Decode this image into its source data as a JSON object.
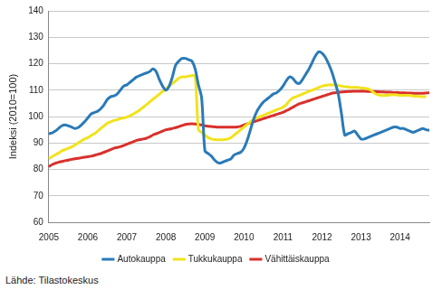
{
  "chart_data": {
    "type": "line",
    "y_label": "Indeksi (2010=100)",
    "annotations": [
      "Lähde: Tilastokeskus"
    ],
    "categories": [
      "2005",
      null,
      null,
      null,
      null,
      null,
      null,
      null,
      null,
      null,
      null,
      null,
      "2006",
      null,
      null,
      null,
      null,
      null,
      null,
      null,
      null,
      null,
      null,
      null,
      "2007",
      null,
      null,
      null,
      null,
      null,
      null,
      null,
      null,
      null,
      null,
      null,
      "2008",
      null,
      null,
      null,
      null,
      null,
      null,
      null,
      null,
      null,
      null,
      null,
      "2009",
      null,
      null,
      null,
      null,
      null,
      null,
      null,
      null,
      null,
      null,
      null,
      "2010",
      null,
      null,
      null,
      null,
      null,
      null,
      null,
      null,
      null,
      null,
      null,
      "2011",
      null,
      null,
      null,
      null,
      null,
      null,
      null,
      null,
      null,
      null,
      null,
      "2012",
      null,
      null,
      null,
      null,
      null,
      null,
      null,
      null,
      null,
      null,
      null,
      "2013",
      null,
      null,
      null,
      null,
      null,
      null,
      null,
      null,
      null,
      null,
      null,
      "2014",
      null,
      null,
      null,
      null,
      null,
      null,
      null,
      null,
      null
    ],
    "series": [
      {
        "name": "Autokauppa",
        "color": "#2a7ab8",
        "values": [
          93.5,
          93.8,
          94.5,
          95.5,
          96.5,
          96.8,
          96.5,
          96,
          95.5,
          95.8,
          96.8,
          98,
          99.5,
          101,
          101.5,
          102,
          103,
          104.5,
          106.5,
          107.5,
          107.8,
          108.5,
          110,
          111.5,
          112,
          113,
          114,
          115,
          115.5,
          116,
          116.5,
          117,
          118,
          117,
          114,
          111.5,
          110,
          111.5,
          115,
          119.5,
          121,
          122,
          122,
          121.5,
          121,
          118,
          112,
          107,
          87,
          86,
          85,
          83.5,
          82.5,
          82.5,
          83,
          83.5,
          84,
          85.5,
          86,
          86.5,
          88,
          91,
          95,
          99,
          102,
          104,
          105.5,
          106.5,
          107.5,
          108.5,
          109,
          110,
          111.5,
          113.5,
          115,
          114.5,
          113,
          112.5,
          114,
          116,
          118,
          120.5,
          123,
          124.5,
          124,
          122.5,
          120,
          117,
          113,
          108.5,
          101,
          93,
          93.5,
          94,
          94.5,
          93,
          91.5,
          91.5,
          92,
          92.5,
          93,
          93.5,
          94,
          94.5,
          95,
          95.5,
          96,
          96,
          95.5,
          95.5,
          95,
          94.5,
          94,
          94.5,
          95,
          95.5,
          95,
          94.8
        ]
      },
      {
        "name": "Tukkukauppa",
        "color": "#f2e21b",
        "values": [
          84,
          84.8,
          85.5,
          86.2,
          87,
          87.5,
          88,
          88.5,
          89.2,
          90,
          90.8,
          91.5,
          92,
          92.8,
          93.5,
          94.5,
          95.5,
          96.5,
          97.5,
          98,
          98.5,
          98.8,
          99.2,
          99.5,
          99.8,
          100.3,
          101,
          101.7,
          102.5,
          103.5,
          104.5,
          105.5,
          106.5,
          107.5,
          108.5,
          109.5,
          110.5,
          111.5,
          112.5,
          113.5,
          114.5,
          115,
          115,
          115.3,
          115.5,
          115.3,
          95,
          94,
          93,
          92,
          91.5,
          91.3,
          91.2,
          91.2,
          91.3,
          91.5,
          92,
          93,
          94,
          95,
          96,
          97,
          98,
          99,
          99.5,
          100,
          100.5,
          101,
          101.5,
          102,
          102.5,
          103,
          103.5,
          104.5,
          106,
          107,
          107.5,
          108,
          108.5,
          109,
          109.5,
          110,
          110.5,
          111,
          111.5,
          111.8,
          112,
          112,
          112,
          111.8,
          111.5,
          111.3,
          111.2,
          111,
          111,
          111,
          110.8,
          110.7,
          110.5,
          110,
          109,
          108.3,
          108,
          108,
          108,
          108.2,
          108.3,
          108.2,
          108,
          108,
          108,
          108,
          107.8,
          107.7,
          107.6,
          107.5,
          107.5,
          null
        ]
      },
      {
        "name": "Vähittäiskauppa",
        "color": "#d9302c",
        "values": [
          81,
          81.8,
          82.3,
          82.7,
          83,
          83.3,
          83.5,
          83.8,
          84,
          84.2,
          84.4,
          84.6,
          84.8,
          85,
          85.3,
          85.7,
          86,
          86.5,
          87,
          87.5,
          88,
          88.3,
          88.6,
          89,
          89.5,
          90,
          90.5,
          91,
          91.3,
          91.5,
          91.8,
          92.3,
          93,
          93.5,
          94,
          94.5,
          95,
          95.2,
          95.5,
          95.8,
          96.2,
          96.6,
          97,
          97.2,
          97.3,
          97.2,
          97,
          96.8,
          96.5,
          96.3,
          96.2,
          96.1,
          96,
          96,
          96,
          96,
          96,
          96,
          96.1,
          96.3,
          96.8,
          97.2,
          97.6,
          98,
          98.4,
          98.8,
          99.2,
          99.6,
          100,
          100.4,
          100.8,
          101.2,
          101.6,
          102.2,
          102.8,
          103.5,
          104.2,
          104.8,
          105.2,
          105.6,
          106,
          106.4,
          106.8,
          107.2,
          107.6,
          108,
          108.4,
          108.8,
          109,
          109.2,
          109.3,
          109.4,
          109.5,
          109.5,
          109.6,
          109.6,
          109.6,
          109.6,
          109.5,
          109.5,
          109.5,
          109.4,
          109.3,
          109.3,
          109.2,
          109.2,
          109.1,
          109.1,
          109,
          109,
          108.9,
          108.9,
          108.8,
          108.8,
          108.8,
          108.8,
          108.9,
          109
        ]
      }
    ],
    "ylim": [
      60,
      140
    ],
    "yticks": [
      60,
      70,
      80,
      90,
      100,
      110,
      120,
      130,
      140
    ],
    "grid": true,
    "legend": "bottom"
  }
}
